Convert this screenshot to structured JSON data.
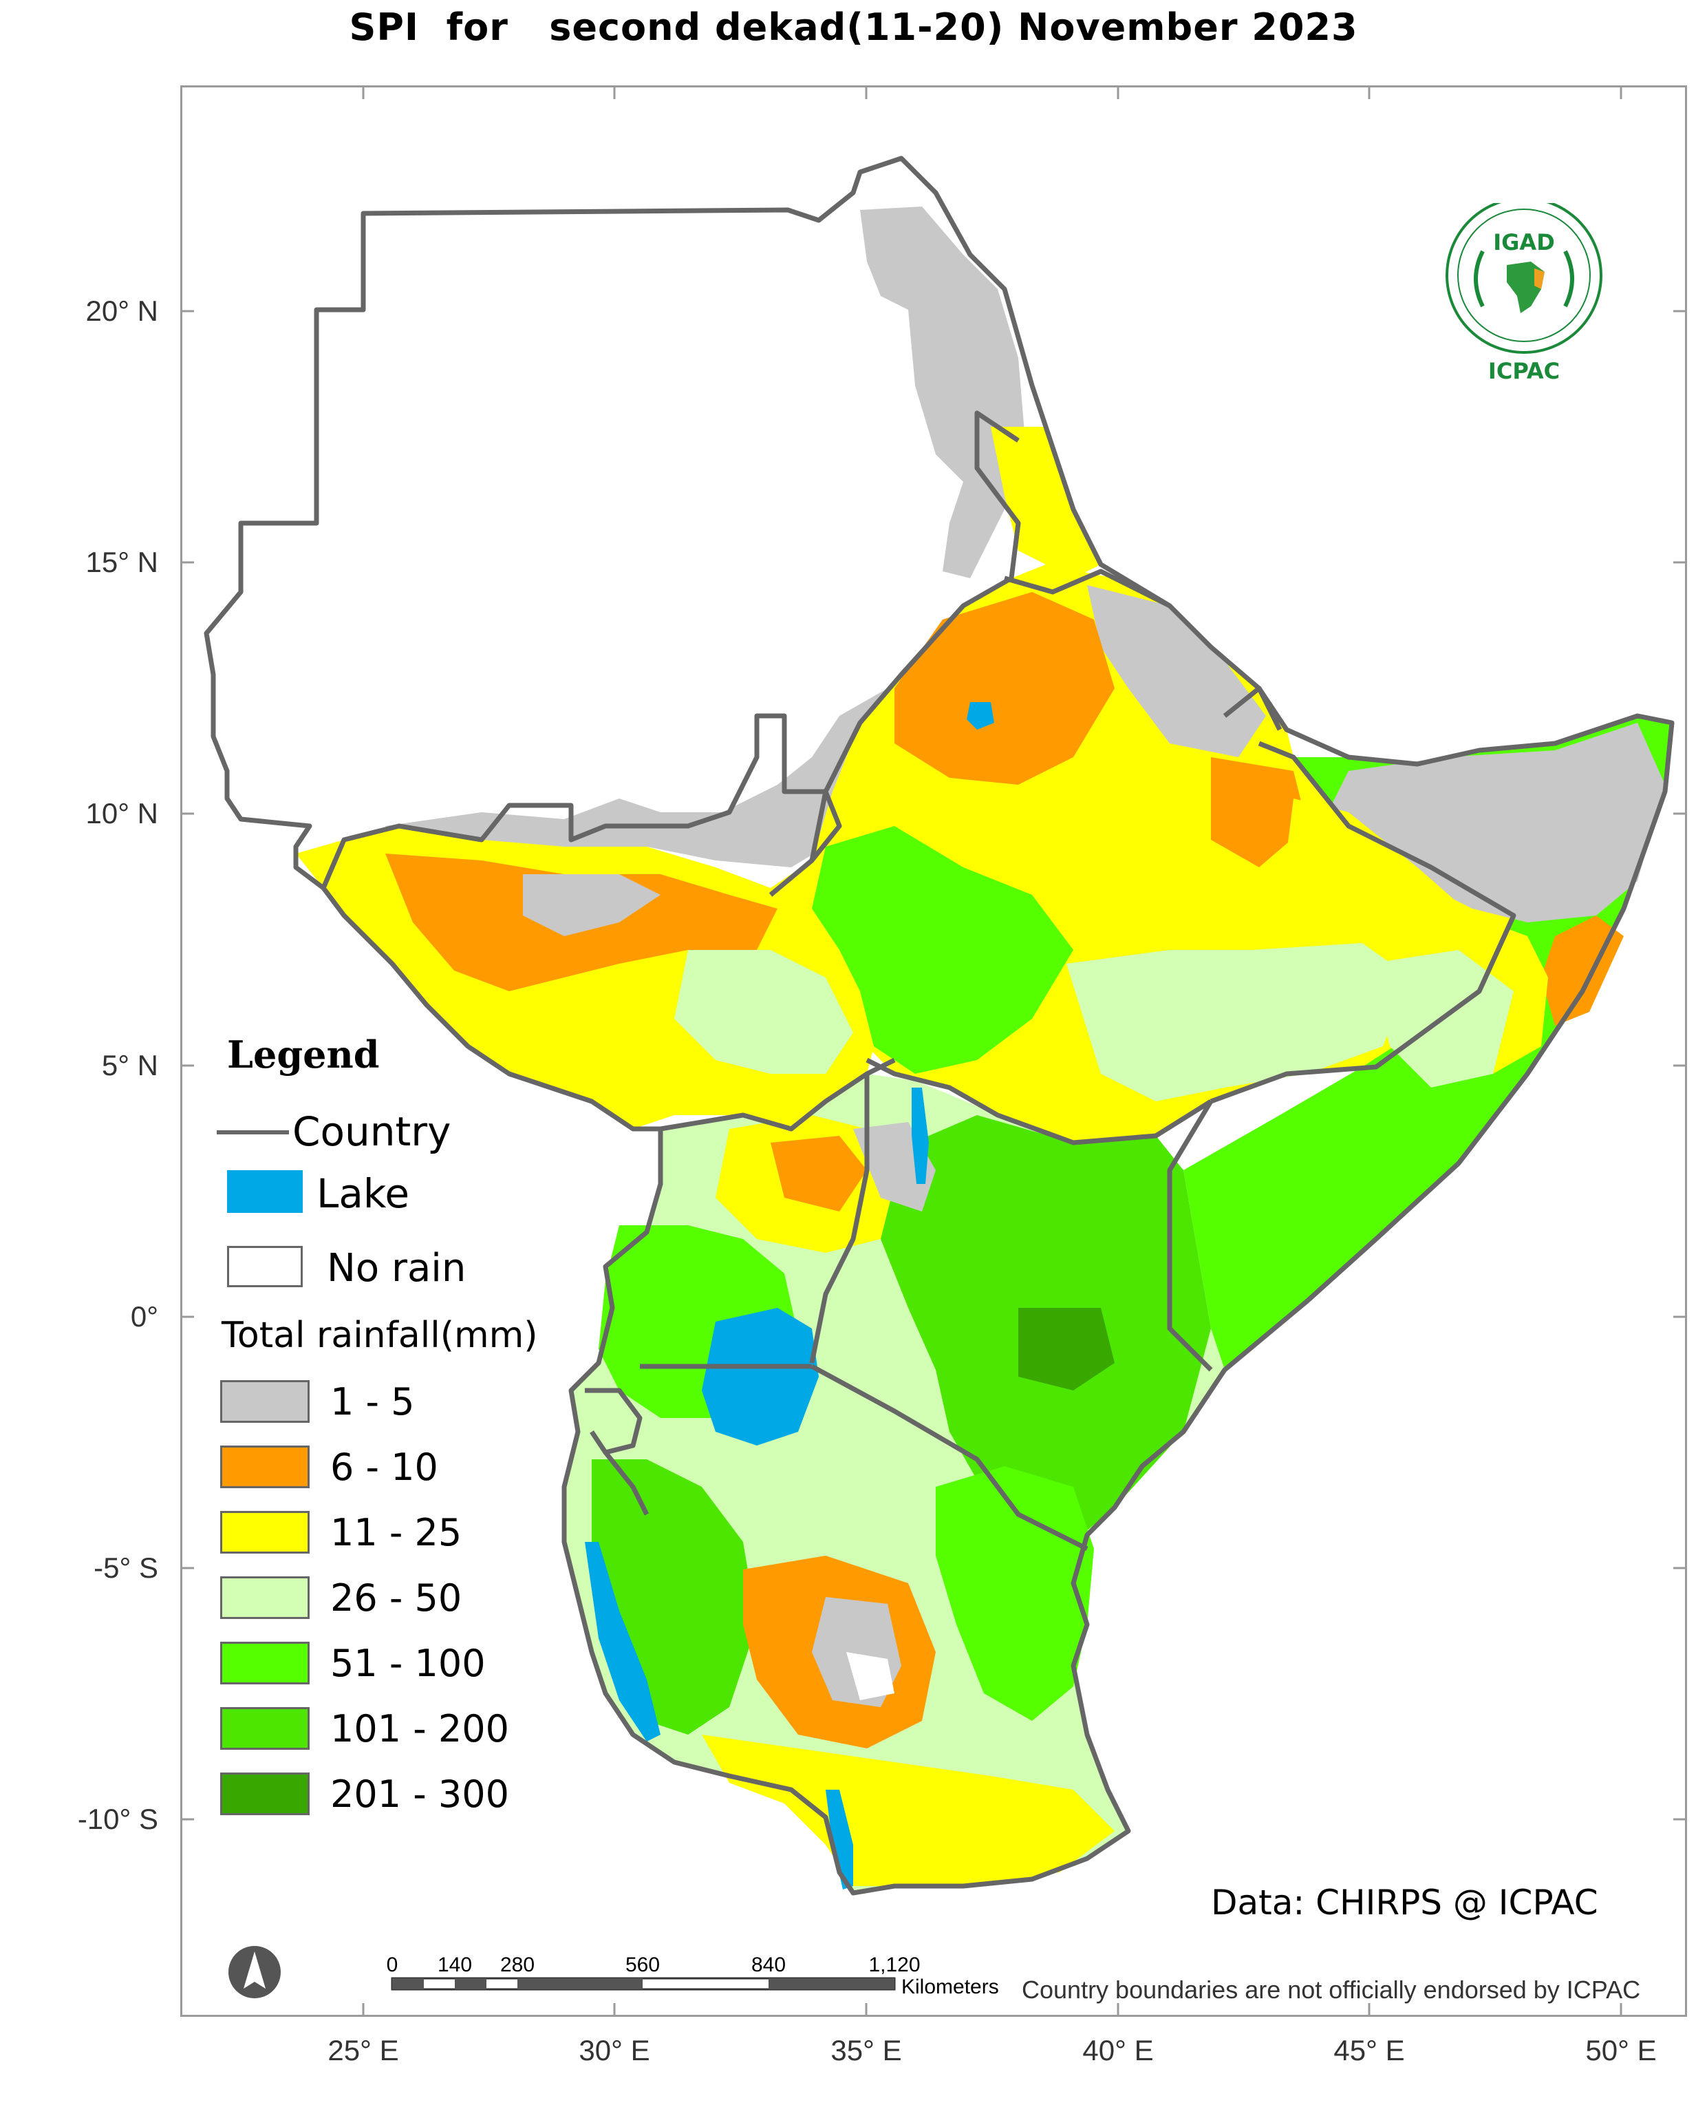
{
  "title": "SPI  for   second dekad(11-20) November 2023",
  "axes": {
    "y_labels": [
      "20° N",
      "15° N",
      "10° N",
      "5° N",
      "0°",
      "-5° S",
      "-10° S"
    ],
    "x_labels": [
      "25° E",
      "30° E",
      "35° E",
      "40° E",
      "45° E",
      "50° E"
    ]
  },
  "legend": {
    "title": "Legend",
    "country_label": "Country",
    "lake_label": "Lake",
    "norain_label": "No rain",
    "rain_title": "Total rainfall(mm)",
    "classes": [
      {
        "label": "1 - 5",
        "color": "#c8c8c8"
      },
      {
        "label": "6 - 10",
        "color": "#ff9a00"
      },
      {
        "label": "11 - 25",
        "color": "#ffff00"
      },
      {
        "label": "26 - 50",
        "color": "#d2ffb4"
      },
      {
        "label": "51 - 100",
        "color": "#55ff00"
      },
      {
        "label": "101 - 200",
        "color": "#4ce600"
      },
      {
        "label": "201 - 300",
        "color": "#38a800"
      }
    ],
    "lake_color": "#00a9e6",
    "boundary_color": "#666666"
  },
  "logo": {
    "top_text": "IGAD",
    "bottom_text": "ICPAC"
  },
  "credit": "Data: CHIRPS @ ICPAC",
  "disclaimer": "Country boundaries are not officially endorsed by ICPAC",
  "scale_bar": {
    "ticks": [
      "0",
      "140",
      "280",
      "560",
      "840",
      "1,120"
    ],
    "unit": "Kilometers"
  }
}
